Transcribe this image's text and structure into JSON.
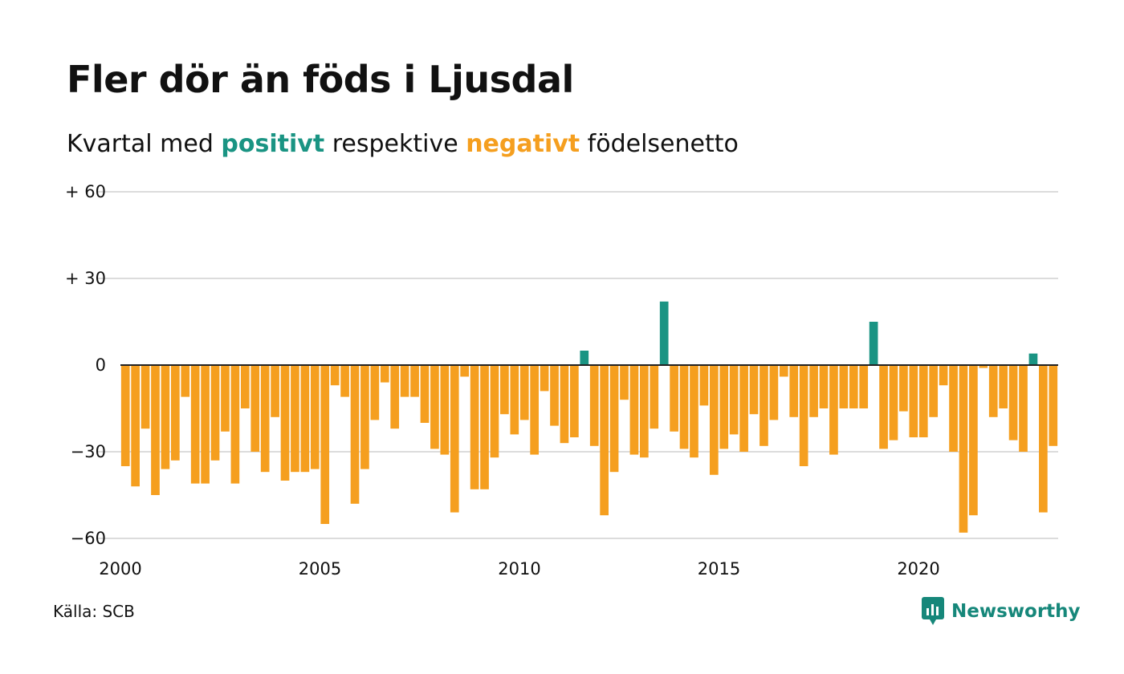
{
  "title": "Fler dör än föds i Ljusdal",
  "subtitle": {
    "prefix": "Kvartal med ",
    "positive": "positivt",
    "middle": " respektive ",
    "negative": "negativt",
    "suffix": " födelsenetto"
  },
  "colors": {
    "positive": "#1a9483",
    "negative": "#f59f1f",
    "grid": "#dcdcdc",
    "zero_line": "#222222"
  },
  "source": "Källa: SCB",
  "brand": {
    "name": "Newsworthy",
    "icon": "newsworthy-logo-icon"
  },
  "chart_data": {
    "type": "bar",
    "frequency": "quarterly",
    "x_start": "2000 Q1",
    "x_ticks": [
      "2000",
      "2005",
      "2010",
      "2015",
      "2020"
    ],
    "y_ticks": [
      {
        "value": 60,
        "label": "+ 60"
      },
      {
        "value": 30,
        "label": "+ 30"
      },
      {
        "value": 0,
        "label": "0"
      },
      {
        "value": -30,
        "label": "−30"
      },
      {
        "value": -60,
        "label": "−60"
      }
    ],
    "ylim": [
      -60,
      60
    ],
    "grid": true,
    "values": [
      -35,
      -42,
      -22,
      -45,
      -36,
      -33,
      -11,
      -41,
      -41,
      -33,
      -23,
      -41,
      -15,
      -30,
      -37,
      -18,
      -40,
      -37,
      -37,
      -36,
      -55,
      -7,
      -11,
      -48,
      -36,
      -19,
      -6,
      -22,
      -11,
      -11,
      -20,
      -29,
      -31,
      -51,
      -4,
      -43,
      -43,
      -32,
      -17,
      -24,
      -19,
      -31,
      -9,
      -21,
      -27,
      -25,
      5,
      -28,
      -52,
      -37,
      -12,
      -31,
      -32,
      -22,
      22,
      -23,
      -29,
      -32,
      -14,
      -38,
      -29,
      -24,
      -30,
      -17,
      -28,
      -19,
      -4,
      -18,
      -35,
      -18,
      -15,
      -31,
      -15,
      -15,
      -15,
      15,
      -29,
      -26,
      -16,
      -25,
      -25,
      -18,
      -7,
      -30,
      -58,
      -52,
      -1,
      -18,
      -15,
      -26,
      -30,
      4,
      -51,
      -28
    ]
  }
}
